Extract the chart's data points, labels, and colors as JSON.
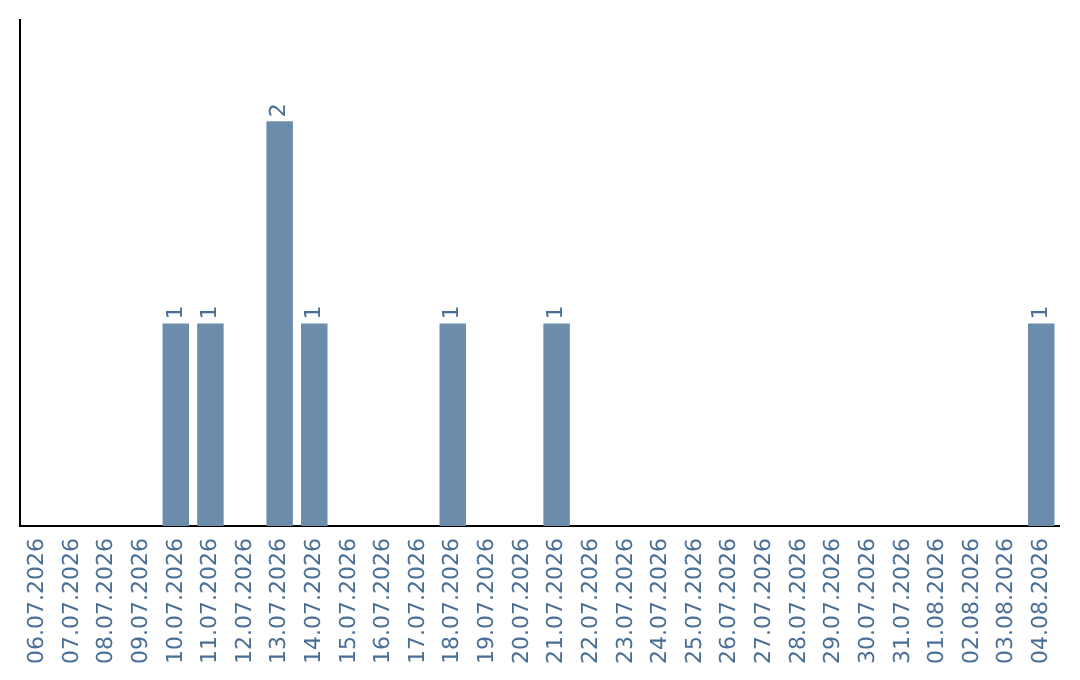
{
  "chart_data": {
    "type": "bar",
    "categories": [
      "06.07.2026",
      "07.07.2026",
      "08.07.2026",
      "09.07.2026",
      "10.07.2026",
      "11.07.2026",
      "12.07.2026",
      "13.07.2026",
      "14.07.2026",
      "15.07.2026",
      "16.07.2026",
      "17.07.2026",
      "18.07.2026",
      "19.07.2026",
      "20.07.2026",
      "21.07.2026",
      "22.07.2026",
      "23.07.2026",
      "24.07.2026",
      "25.07.2026",
      "26.07.2026",
      "27.07.2026",
      "28.07.2026",
      "29.07.2026",
      "30.07.2026",
      "31.07.2026",
      "01.08.2026",
      "02.08.2026",
      "03.08.2026",
      "04.08.2026"
    ],
    "values": [
      0,
      0,
      0,
      0,
      1,
      1,
      0,
      2,
      1,
      0,
      0,
      0,
      1,
      0,
      0,
      1,
      0,
      0,
      0,
      0,
      0,
      0,
      0,
      0,
      0,
      0,
      0,
      0,
      0,
      1
    ],
    "value_labels": [
      null,
      null,
      null,
      null,
      "1",
      "1",
      null,
      "2",
      "1",
      null,
      null,
      null,
      "1",
      null,
      null,
      "1",
      null,
      null,
      null,
      null,
      null,
      null,
      null,
      null,
      null,
      null,
      null,
      null,
      null,
      "1"
    ],
    "color": "#6b8cab",
    "grid": false,
    "legend": false,
    "tick_labels": "x"
  }
}
